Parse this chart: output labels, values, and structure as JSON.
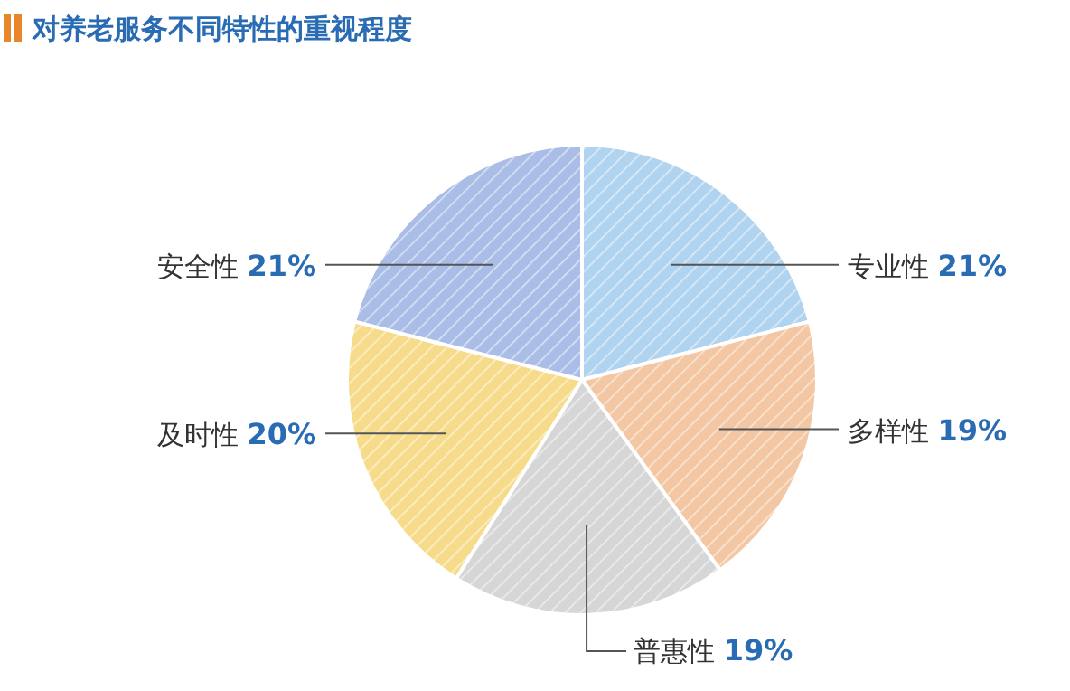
{
  "chart_data": {
    "type": "pie",
    "title": "对养老服务不同特性的重视程度",
    "categories": [
      "专业性",
      "多样性",
      "普惠性",
      "及时性",
      "安全性"
    ],
    "values": [
      21,
      19,
      19,
      20,
      21
    ],
    "value_labels": [
      "21%",
      "19%",
      "19%",
      "20%",
      "21%"
    ],
    "colors": [
      "#b0d3ef",
      "#f3c7a3",
      "#d6d6d6",
      "#f6dc8a",
      "#a9bde6"
    ]
  }
}
